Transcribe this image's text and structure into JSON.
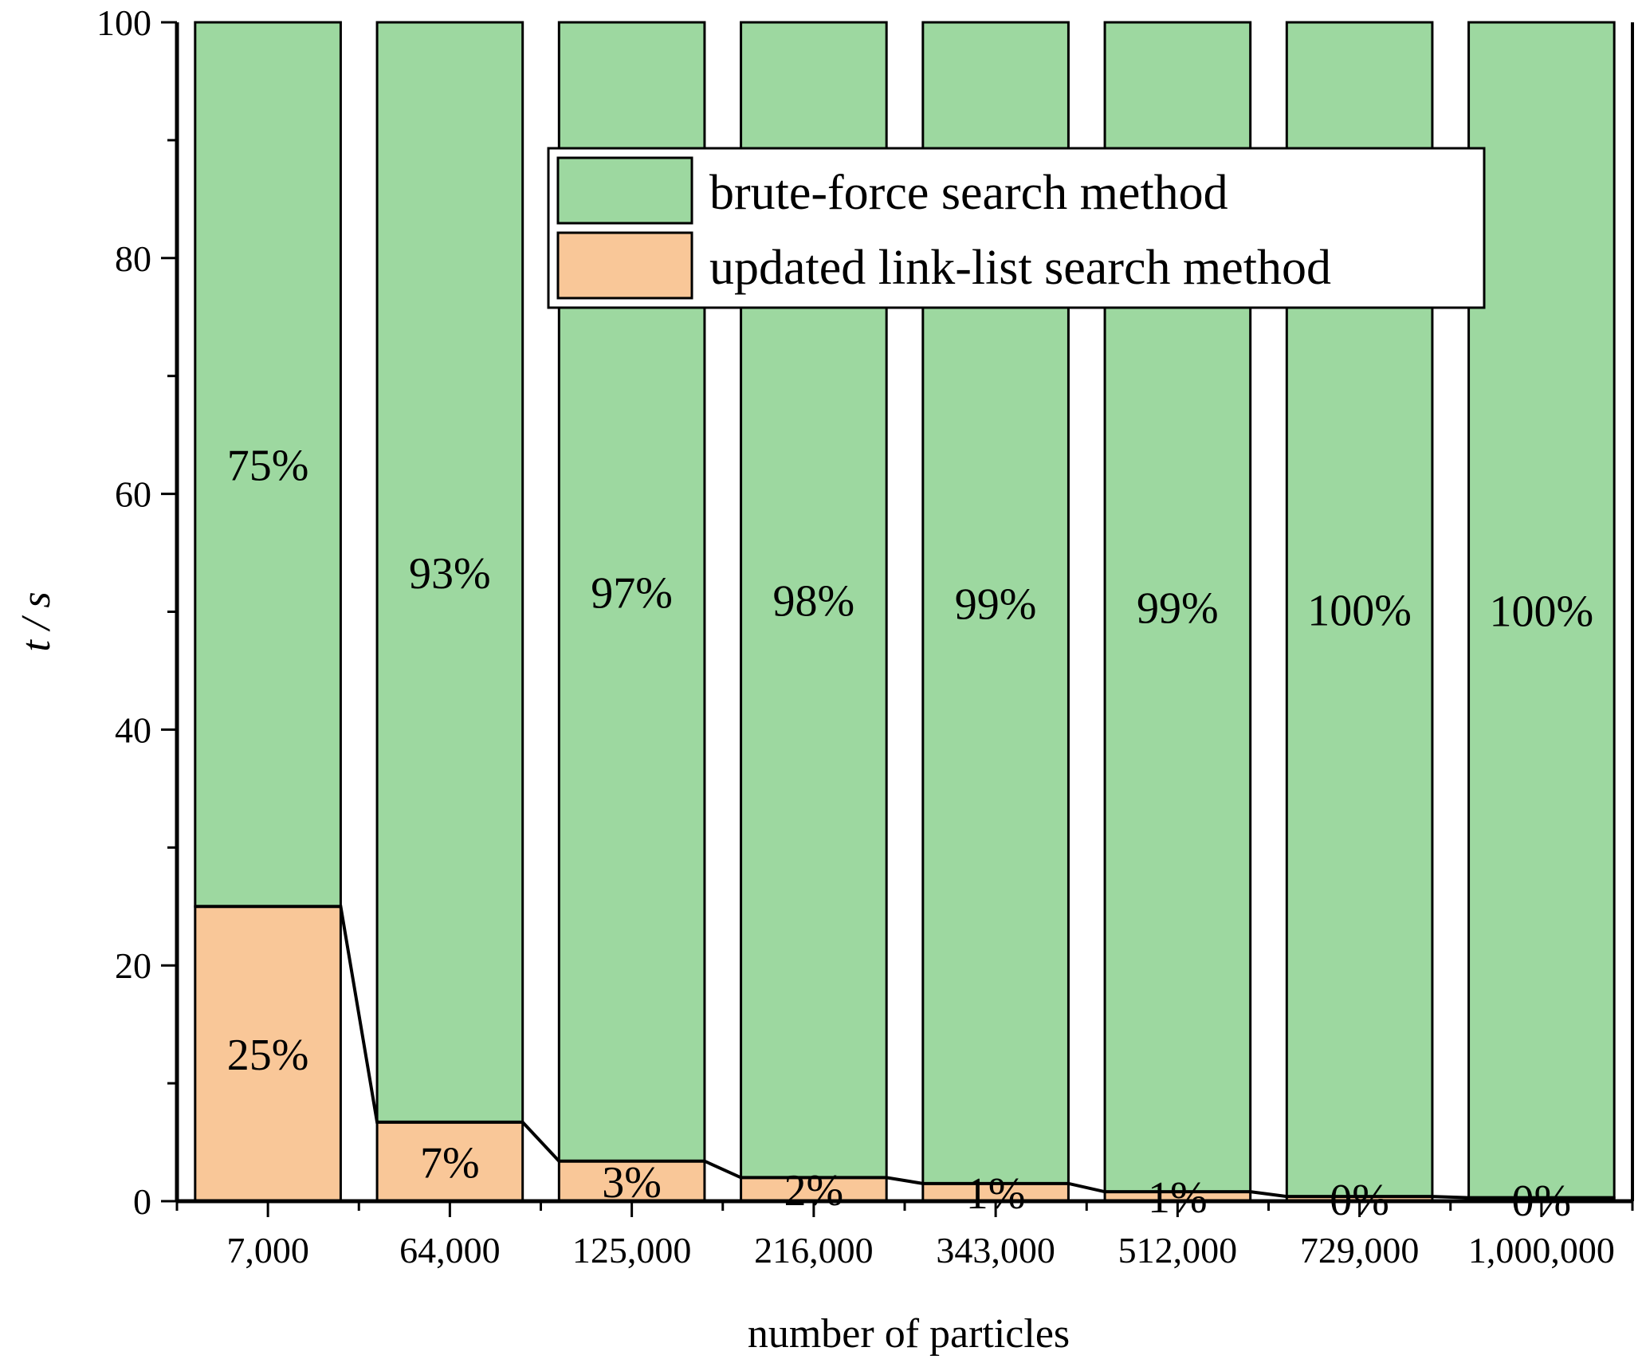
{
  "chart_data": {
    "type": "bar",
    "stacked": true,
    "title": "",
    "xlabel": "number of particles",
    "ylabel": "t / s",
    "ylim": [
      0,
      100
    ],
    "yticks": [
      0,
      20,
      40,
      60,
      80,
      100
    ],
    "ytick_labels": [
      "0",
      "20",
      "40",
      "60",
      "80",
      "100"
    ],
    "categories": [
      "7,000",
      "64,000",
      "125,000",
      "216,000",
      "343,000",
      "512,000",
      "729,000",
      "1,000,000"
    ],
    "series": [
      {
        "name": "updated link-list search method",
        "color": "#f9c798",
        "values": [
          25,
          6.7,
          3.4,
          2,
          1.5,
          0.8,
          0.4,
          0.3
        ],
        "labels": [
          "25%",
          "7%",
          "3%",
          "2%",
          "1%",
          "1%",
          "0%",
          "0%"
        ]
      },
      {
        "name": "brute-force search method",
        "color": "#9dd8a0",
        "values": [
          75,
          93.3,
          96.6,
          98,
          98.5,
          99.2,
          99.6,
          99.7
        ],
        "labels": [
          "75%",
          "93%",
          "97%",
          "98%",
          "99%",
          "99%",
          "100%",
          "100%"
        ]
      }
    ],
    "legend_position": "top-right",
    "grid": false,
    "connector_line": true
  }
}
